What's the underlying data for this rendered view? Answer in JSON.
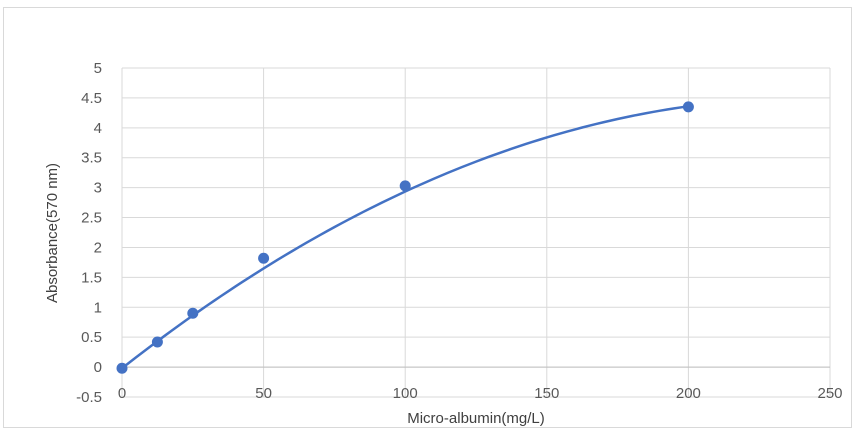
{
  "chart_data": {
    "type": "scatter",
    "title": "",
    "xlabel": "Micro-albumin(mg/L)",
    "ylabel": "Absorbance(570 nm)",
    "xlim": [
      0,
      250
    ],
    "ylim": [
      -0.5,
      5
    ],
    "x_ticks": [
      0,
      50,
      100,
      150,
      200,
      250
    ],
    "y_ticks": [
      -0.5,
      0,
      0.5,
      1,
      1.5,
      2,
      2.5,
      3,
      3.5,
      4,
      4.5,
      5
    ],
    "y_tick_labels": [
      "-0.5",
      "0",
      "0.5",
      "1",
      "1.5",
      "2",
      "2.5",
      "3",
      "3.5",
      "4",
      "4.5",
      "5"
    ],
    "grid": true,
    "legend": "none",
    "series": [
      {
        "x": [
          0,
          12.5,
          25,
          50,
          100,
          200
        ],
        "y": [
          -0.02,
          0.42,
          0.9,
          1.82,
          3.03,
          4.35
        ]
      }
    ],
    "trendline": {
      "type": "polynomial",
      "coefficients": [
        -0.02,
        0.0372,
        -7.65e-05
      ]
    },
    "colors": {
      "series": "#4472c4",
      "grid": "#d9d9d9",
      "tick_label": "#595959",
      "axis_title": "#404040"
    }
  }
}
